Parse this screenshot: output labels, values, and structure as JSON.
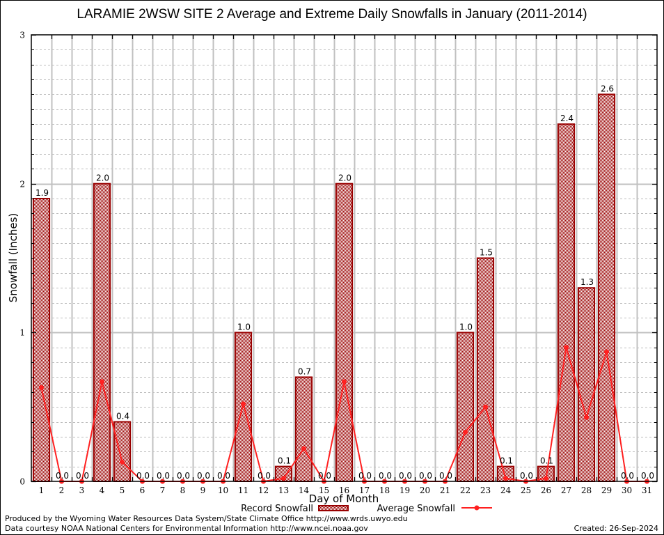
{
  "chart_data": {
    "type": "bar",
    "title": "LARAMIE 2WSW SITE 2 Average and Extreme Daily Snowfalls in January (2011-2014)",
    "xlabel": "Day of Month",
    "ylabel": "Snowfall (Inches)",
    "ylim": [
      0,
      3
    ],
    "yticks": [
      "0",
      "1",
      "2",
      "3"
    ],
    "grid": true,
    "categories": [
      "1",
      "2",
      "3",
      "4",
      "5",
      "6",
      "7",
      "8",
      "9",
      "10",
      "11",
      "12",
      "13",
      "14",
      "15",
      "16",
      "17",
      "18",
      "19",
      "20",
      "21",
      "22",
      "23",
      "24",
      "25",
      "26",
      "27",
      "28",
      "29",
      "30",
      "31"
    ],
    "series": [
      {
        "name": "Record Snowfall",
        "type": "bar",
        "color": "#990000",
        "values": [
          1.9,
          0.0,
          0.0,
          2.0,
          0.4,
          0.0,
          0.0,
          0.0,
          0.0,
          0.0,
          1.0,
          0.0,
          0.1,
          0.7,
          0.0,
          2.0,
          0.0,
          0.0,
          0.0,
          0.0,
          0.0,
          1.0,
          1.5,
          0.1,
          0.0,
          0.1,
          2.4,
          1.3,
          2.6,
          0.0,
          0.0
        ],
        "labels": [
          "1.9",
          "0.0",
          "0.0",
          "2.0",
          "0.4",
          "0.0",
          "0.0",
          "0.0",
          "0.0",
          "0.0",
          "1.0",
          "0.0",
          "0.1",
          "0.7",
          "0.0",
          "2.0",
          "0.0",
          "0.0",
          "0.0",
          "0.0",
          "0.0",
          "1.0",
          "1.5",
          "0.1",
          "0.0",
          "0.1",
          "2.4",
          "1.3",
          "2.6",
          "0.0",
          "0.0"
        ]
      },
      {
        "name": "Average Snowfall",
        "type": "line",
        "color": "#ff2020",
        "values": [
          0.63,
          0.0,
          0.0,
          0.67,
          0.13,
          0.0,
          0.0,
          0.0,
          0.0,
          0.0,
          0.52,
          0.0,
          0.02,
          0.22,
          0.0,
          0.67,
          0.0,
          0.0,
          0.0,
          0.0,
          0.0,
          0.33,
          0.5,
          0.02,
          0.0,
          0.02,
          0.9,
          0.43,
          0.87,
          0.0,
          0.0
        ]
      }
    ],
    "legend_position": "bottom"
  },
  "footer": {
    "produced_by": "Produced by the Wyoming Water Resources Data System/State Climate Office http://www.wrds.uwyo.edu",
    "courtesy": "Data courtesy NOAA National Centers for Environmental Information http://www.ncei.noaa.gov",
    "created": "Created:  26-Sep-2024"
  }
}
